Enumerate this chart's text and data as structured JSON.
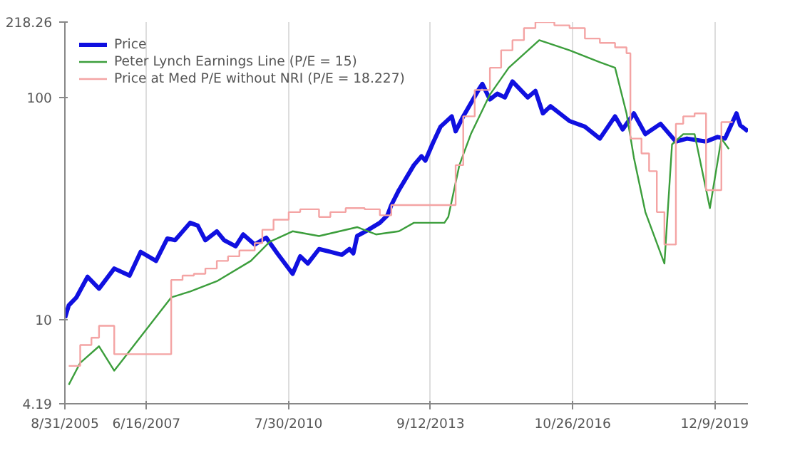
{
  "chart_data": {
    "type": "line",
    "log": "y",
    "grid": "x",
    "legend": "top left",
    "xlim": [
      "2005-08-31",
      "2020-09-01"
    ],
    "xticks": [
      {
        "value": "2005-08-31",
        "label": "8/31/2005"
      },
      {
        "value": "2007-06-16",
        "label": "6/16/2007"
      },
      {
        "value": "2010-07-30",
        "label": "7/30/2010"
      },
      {
        "value": "2013-09-12",
        "label": "9/12/2013"
      },
      {
        "value": "2016-10-26",
        "label": "10/26/2016"
      },
      {
        "value": "2019-12-09",
        "label": "12/9/2019"
      }
    ],
    "ylim": [
      4.19,
      218.26
    ],
    "yticks": [
      4.19,
      10,
      100,
      218.26
    ],
    "series": [
      {
        "name": "Price",
        "color": "#1010e0",
        "x": [
          "2005-09",
          "2005-10",
          "2005-12",
          "2006-03",
          "2006-06",
          "2006-10",
          "2007-02",
          "2007-05",
          "2007-09",
          "2007-12",
          "2008-02",
          "2008-06",
          "2008-08",
          "2008-10",
          "2009-01",
          "2009-03",
          "2009-06",
          "2009-08",
          "2009-11",
          "2010-02",
          "2010-05",
          "2010-09",
          "2010-11",
          "2011-01",
          "2011-04",
          "2011-07",
          "2011-10",
          "2011-12",
          "2012-01",
          "2012-02",
          "2012-05",
          "2012-08",
          "2012-10",
          "2012-11",
          "2013-01",
          "2013-05",
          "2013-07",
          "2013-08",
          "2013-10",
          "2013-12",
          "2014-03",
          "2014-04",
          "2014-06",
          "2014-10",
          "2014-11",
          "2015-01",
          "2015-03",
          "2015-05",
          "2015-07",
          "2015-11",
          "2016-01",
          "2016-03",
          "2016-05",
          "2016-10",
          "2017-02",
          "2017-06",
          "2017-10",
          "2017-12",
          "2018-03",
          "2018-06",
          "2018-10",
          "2019-02",
          "2019-05",
          "2019-10",
          "2020-01",
          "2020-03",
          "2020-06",
          "2020-07",
          "2020-09"
        ],
        "values": [
          10.2,
          11.6,
          12.6,
          15.6,
          13.8,
          17,
          15.8,
          20.2,
          18.4,
          23.2,
          22.8,
          27.3,
          26.5,
          22.8,
          25,
          22.8,
          21.4,
          24.2,
          21.8,
          23.4,
          19.9,
          16.1,
          19.3,
          17.9,
          20.8,
          20.2,
          19.6,
          20.8,
          19.9,
          23.8,
          25.4,
          27.3,
          29.5,
          32.8,
          38.3,
          49.6,
          54.4,
          52,
          62.4,
          73.9,
          82.2,
          70.4,
          82.2,
          108,
          115,
          98,
          104,
          100,
          118,
          100,
          107,
          84.8,
          91.3,
          78.3,
          73.9,
          65.3,
          82.2,
          71.8,
          84.8,
          68.4,
          76.1,
          63.3,
          65.3,
          63.3,
          66.4,
          65.3,
          84.8,
          75,
          70.4
        ]
      },
      {
        "name": "Peter Lynch Earnings Line (P/E = 15)",
        "color": "#3c9e3c",
        "x": [
          "2005-10",
          "2006-01",
          "2006-06",
          "2006-10",
          "2008-01",
          "2008-06",
          "2009-01",
          "2009-10",
          "2010-03",
          "2010-09",
          "2011-04",
          "2012-02",
          "2012-07",
          "2013-01",
          "2013-05",
          "2014-01",
          "2014-02",
          "2014-05",
          "2014-08",
          "2015-01",
          "2015-06",
          "2016-02",
          "2016-10",
          "2017-06",
          "2017-10",
          "2018-01",
          "2018-03",
          "2018-06",
          "2018-11",
          "2019-01",
          "2019-04",
          "2019-07",
          "2019-11",
          "2020-02",
          "2020-04"
        ],
        "values": [
          5.1,
          6.4,
          7.6,
          5.9,
          12.6,
          13.4,
          14.9,
          18.4,
          22.4,
          25,
          23.8,
          26.1,
          24.2,
          25,
          27.3,
          27.3,
          29,
          49.6,
          68.4,
          103,
          136,
          181,
          163,
          144,
          136,
          84.8,
          53.6,
          30.5,
          17.9,
          61.5,
          68.4,
          68.4,
          31.8,
          65.3,
          58.6
        ]
      },
      {
        "name": "Price at Med P/E without NRI (P/E = 18.227)",
        "color": "#f4a4a4",
        "type": "step",
        "x": [
          "2005-10",
          "2006-01",
          "2006-04",
          "2006-06",
          "2006-10",
          "2008-01",
          "2008-04",
          "2008-07",
          "2008-10",
          "2009-01",
          "2009-04",
          "2009-07",
          "2009-11",
          "2010-01",
          "2010-04",
          "2010-08",
          "2010-11",
          "2011-04",
          "2011-07",
          "2011-11",
          "2012-04",
          "2012-08",
          "2012-11",
          "2014-04",
          "2014-06",
          "2014-09",
          "2015-01",
          "2015-04",
          "2015-07",
          "2015-10",
          "2016-01",
          "2016-06",
          "2016-10",
          "2017-02",
          "2017-06",
          "2017-10",
          "2018-01",
          "2018-02",
          "2018-05",
          "2018-07",
          "2018-09",
          "2018-11",
          "2019-02",
          "2019-04",
          "2019-07",
          "2019-10",
          "2020-02",
          "2020-05"
        ],
        "values": [
          6.2,
          7.7,
          8.3,
          9.4,
          7.0,
          15.1,
          15.8,
          16.1,
          17,
          18.4,
          19.3,
          20.5,
          22.1,
          25.4,
          28.2,
          30.5,
          31.4,
          29,
          30.5,
          31.8,
          31.4,
          29.5,
          32.8,
          49.6,
          82.2,
          108,
          136,
          163,
          181,
          205,
          218,
          211,
          205,
          184,
          176,
          168,
          158,
          65.3,
          56,
          46.6,
          30.5,
          21.8,
          76.1,
          82.2,
          84.8,
          38.3,
          77.4,
          77.4
        ]
      }
    ]
  }
}
